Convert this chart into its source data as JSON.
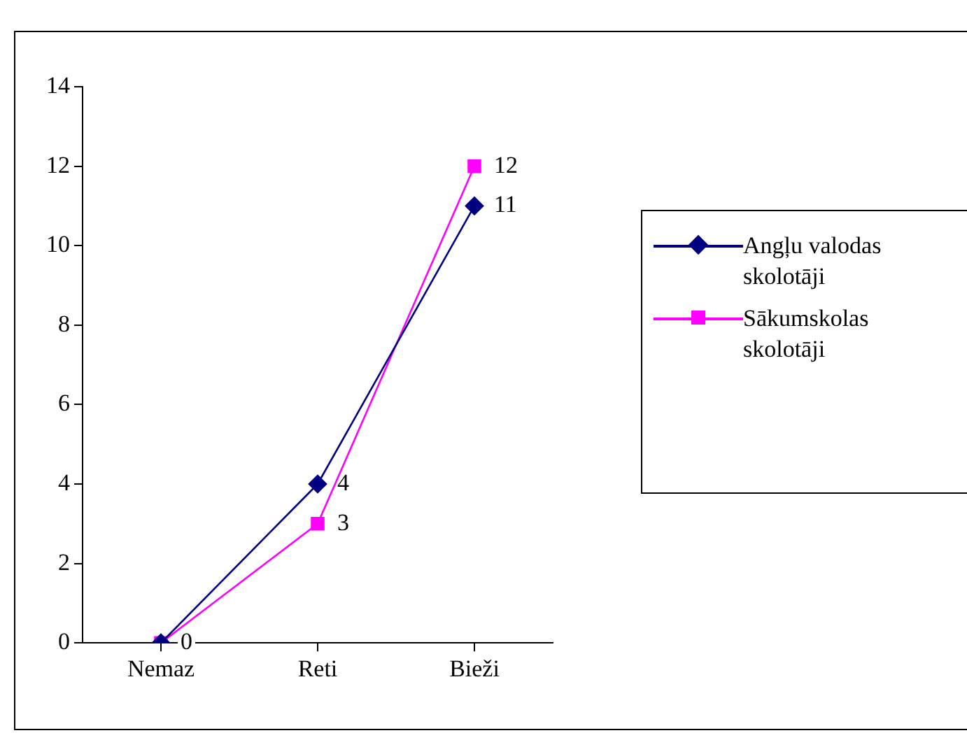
{
  "chart_data": {
    "type": "line",
    "categories": [
      "Nemaz",
      "Reti",
      "Bieži"
    ],
    "series": [
      {
        "name": "Angļu valodas skolotāji",
        "color": "#000080",
        "marker": "diamond",
        "values": [
          0,
          4,
          11
        ],
        "value_labels": [
          null,
          "4",
          "11"
        ]
      },
      {
        "name": "Sākumskolas skolotāji",
        "color": "#ff00ff",
        "marker": "square",
        "values": [
          0,
          3,
          12
        ],
        "value_labels": [
          "0",
          "3",
          "12"
        ]
      }
    ],
    "ylim": [
      0,
      14
    ],
    "yticks": [
      0,
      2,
      4,
      6,
      8,
      10,
      12,
      14
    ],
    "grid": false,
    "legend": "right",
    "line_style": "solid"
  }
}
